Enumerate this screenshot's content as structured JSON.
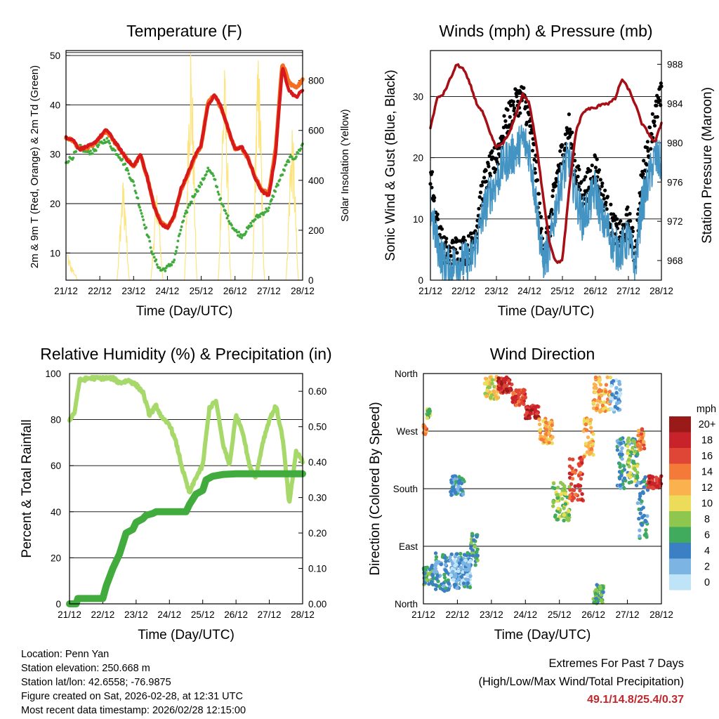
{
  "chart_data": [
    {
      "type": "line",
      "title": "Temperature (F)",
      "xlabel": "Time (Day/UTC)",
      "ylabel": "2m & 9m T (Red, Orange) & 2m Td (Green)",
      "ylabel_right": "Solar Insolation (Yellow)",
      "xlim": [
        0,
        7
      ],
      "x_tick_labels": [
        "21/12",
        "22/12",
        "23/12",
        "24/12",
        "25/12",
        "26/12",
        "27/12",
        "28/12"
      ],
      "ylim": [
        4.5,
        51
      ],
      "y_ticks": [
        10,
        20,
        30,
        40,
        50
      ],
      "y2lim": [
        0,
        920
      ],
      "y2_ticks": [
        0,
        200,
        400,
        600,
        800
      ],
      "series": [
        {
          "name": "2m T",
          "color": "#d7191c",
          "x": [
            0,
            0.2,
            0.4,
            0.6,
            0.8,
            1.0,
            1.2,
            1.4,
            1.6,
            1.8,
            2.0,
            2.2,
            2.4,
            2.6,
            2.8,
            3.0,
            3.2,
            3.4,
            3.6,
            3.8,
            4.0,
            4.2,
            4.4,
            4.6,
            4.8,
            5.0,
            5.2,
            5.4,
            5.6,
            5.8,
            6.0,
            6.2,
            6.4,
            6.6,
            6.8,
            7.0
          ],
          "y": [
            33.5,
            33,
            31,
            31.5,
            32,
            33.5,
            35,
            33,
            31,
            29,
            27.5,
            30,
            25.5,
            19.5,
            16,
            15,
            17.5,
            23,
            26,
            29.5,
            32,
            40,
            42,
            39.5,
            35,
            31,
            31.5,
            29,
            25,
            22.5,
            21.5,
            30,
            47.5,
            43,
            41.5,
            43
          ]
        },
        {
          "name": "9m T",
          "color": "#f46d20",
          "x": [
            0,
            0.2,
            0.4,
            0.6,
            0.8,
            1.0,
            1.2,
            1.4,
            1.6,
            1.8,
            2.0,
            2.2,
            2.4,
            2.6,
            2.8,
            3.0,
            3.2,
            3.4,
            3.6,
            3.8,
            4.0,
            4.2,
            4.4,
            4.6,
            4.8,
            5.0,
            5.2,
            5.4,
            5.6,
            5.8,
            6.0,
            6.2,
            6.4,
            6.6,
            6.8,
            7.0
          ],
          "y": [
            33.3,
            32.8,
            31,
            31.3,
            31.8,
            33.3,
            34.7,
            32.8,
            31,
            29,
            27.5,
            29.8,
            25.5,
            19.6,
            16.2,
            15.2,
            17.5,
            22.8,
            25.8,
            29.2,
            31.8,
            40.5,
            42,
            39.2,
            35,
            31.2,
            31.3,
            29,
            25.2,
            22.8,
            22,
            31,
            48.5,
            44.5,
            43.5,
            45
          ]
        },
        {
          "name": "2m Td",
          "color": "#41ab3d",
          "x": [
            0,
            0.2,
            0.4,
            0.6,
            0.8,
            1.0,
            1.2,
            1.4,
            1.6,
            1.8,
            2.0,
            2.2,
            2.4,
            2.6,
            2.8,
            3.0,
            3.2,
            3.4,
            3.6,
            3.8,
            4.0,
            4.2,
            4.4,
            4.6,
            4.8,
            5.0,
            5.2,
            5.4,
            5.6,
            5.8,
            6.0,
            6.2,
            6.4,
            6.6,
            6.8,
            7.0
          ],
          "y": [
            28.5,
            29.5,
            31.5,
            30.5,
            30.5,
            32,
            33,
            31,
            29.5,
            27,
            24,
            19,
            14,
            9,
            6.5,
            7,
            8.5,
            15,
            19,
            22,
            24,
            27,
            25,
            20,
            17,
            14.5,
            13.5,
            15,
            17,
            18,
            19,
            23,
            26,
            29,
            29.5,
            32
          ]
        }
      ],
      "insolation": {
        "name": "Solar Insolation",
        "color": "#fde47f",
        "days": [
          0,
          1,
          2,
          3,
          4,
          5,
          6
        ],
        "peaks": [
          110,
          390,
          340,
          910,
          840,
          880,
          600
        ]
      }
    },
    {
      "type": "line",
      "title": "Winds (mph) & Pressure (mb)",
      "xlabel": "Time (Day/UTC)",
      "ylabel": "Sonic Wind & Gust (Blue, Black)",
      "ylabel_right": "Station Pressure (Maroon)",
      "xlim": [
        0,
        7
      ],
      "x_tick_labels": [
        "21/12",
        "22/12",
        "23/12",
        "24/12",
        "25/12",
        "26/12",
        "27/12",
        "28/12"
      ],
      "ylim": [
        0,
        37.5
      ],
      "y_ticks": [
        0,
        10,
        20,
        30
      ],
      "y2lim": [
        966,
        989.4
      ],
      "y2_ticks": [
        968,
        972,
        976,
        980,
        984,
        988
      ],
      "series": [
        {
          "name": "Sonic Wind",
          "color": "#4393c3",
          "x": [
            0,
            0.2,
            0.4,
            0.6,
            0.8,
            1.0,
            1.2,
            1.4,
            1.6,
            1.8,
            2.0,
            2.2,
            2.4,
            2.6,
            2.8,
            3.0,
            3.2,
            3.4,
            3.6,
            3.8,
            4.0,
            4.2,
            4.4,
            4.6,
            4.8,
            5.0,
            5.2,
            5.4,
            5.6,
            5.8,
            6.0,
            6.2,
            6.4,
            6.6,
            6.8,
            7.0
          ],
          "y": [
            12,
            6,
            3,
            2,
            3,
            3,
            3,
            6,
            11,
            14,
            16,
            19,
            20,
            21,
            23,
            21,
            13,
            3,
            5,
            12,
            17,
            20,
            14,
            10,
            12,
            15,
            10,
            8,
            5,
            5,
            7,
            2,
            12,
            16,
            20,
            19
          ]
        },
        {
          "name": "Gust",
          "color": "#000000",
          "x": [
            0,
            0.2,
            0.4,
            0.6,
            0.8,
            1.0,
            1.2,
            1.4,
            1.6,
            1.8,
            2.0,
            2.2,
            2.4,
            2.6,
            2.8,
            3.0,
            3.2,
            3.4,
            3.6,
            3.8,
            4.0,
            4.2,
            4.4,
            4.6,
            4.8,
            5.0,
            5.2,
            5.4,
            5.6,
            5.8,
            6.0,
            6.2,
            6.4,
            6.6,
            6.8,
            7.0
          ],
          "y": [
            18,
            9,
            5,
            4,
            5,
            5,
            5,
            9,
            15,
            18,
            20,
            24,
            27,
            29,
            30,
            26,
            18,
            5,
            8,
            16,
            21,
            25,
            18,
            14,
            16,
            19,
            14,
            11,
            8,
            7,
            10,
            4,
            16,
            22,
            27,
            30
          ]
        },
        {
          "name": "Station Pressure",
          "color": "#a50f15",
          "x": [
            0,
            0.2,
            0.4,
            0.6,
            0.8,
            1.0,
            1.2,
            1.4,
            1.6,
            1.8,
            2.0,
            2.2,
            2.4,
            2.6,
            2.8,
            3.0,
            3.2,
            3.4,
            3.6,
            3.8,
            4.0,
            4.2,
            4.4,
            4.6,
            4.8,
            5.0,
            5.2,
            5.4,
            5.6,
            5.8,
            6.0,
            6.2,
            6.4,
            6.6,
            6.8,
            7.0
          ],
          "y": [
            981.5,
            984.5,
            985,
            986.5,
            988,
            987.5,
            986,
            984,
            983,
            981,
            979.5,
            980,
            981,
            983,
            985,
            984,
            980,
            975,
            970,
            967.8,
            968,
            975,
            981,
            983,
            983.5,
            983.5,
            984,
            984,
            984.5,
            986.5,
            985.5,
            984,
            982,
            981,
            980,
            982
          ]
        }
      ]
    },
    {
      "type": "line",
      "title": "Relative Humidity (%) & Precipitation (in)",
      "xlabel": "Time (Day/UTC)",
      "ylabel": "Percent & Total Rainfall",
      "xlim": [
        0,
        7
      ],
      "x_tick_labels": [
        "21/12",
        "22/12",
        "23/12",
        "24/12",
        "25/12",
        "26/12",
        "27/12",
        "28/12"
      ],
      "ylim": [
        0,
        100
      ],
      "y_ticks": [
        0,
        20,
        40,
        60,
        80,
        100
      ],
      "y2lim": [
        0,
        0.65
      ],
      "y2_ticks": [
        "0.00",
        "0.10",
        "0.20",
        "0.30",
        "0.40",
        "0.50",
        "0.60"
      ],
      "series": [
        {
          "name": "Relative Humidity",
          "color": "#a6d96a",
          "x": [
            0,
            0.15,
            0.3,
            0.6,
            1.0,
            1.3,
            1.5,
            1.8,
            2.0,
            2.2,
            2.4,
            2.6,
            2.8,
            3.0,
            3.2,
            3.4,
            3.6,
            3.8,
            4.0,
            4.2,
            4.4,
            4.6,
            4.8,
            5.0,
            5.2,
            5.4,
            5.6,
            5.8,
            6.0,
            6.2,
            6.4,
            6.6,
            6.8,
            7.0
          ],
          "y": [
            80,
            83,
            97,
            98,
            98,
            98,
            96,
            97,
            95,
            92,
            82,
            86,
            80,
            78,
            70,
            58,
            48,
            55,
            60,
            85,
            88,
            70,
            60,
            82,
            75,
            60,
            55,
            70,
            80,
            86,
            72,
            43,
            66,
            62
          ]
        },
        {
          "name": "Total Rainfall",
          "color": "#41ab3d",
          "axis": "right",
          "x": [
            0,
            0.2,
            0.25,
            1.0,
            1.1,
            1.3,
            1.5,
            1.7,
            1.9,
            2.0,
            2.2,
            2.3,
            2.5,
            2.6,
            3.0,
            3.5,
            3.6,
            3.8,
            4.0,
            4.1,
            4.3,
            4.6,
            5.0,
            7.0
          ],
          "y": [
            0,
            0,
            0.015,
            0.015,
            0.05,
            0.1,
            0.14,
            0.2,
            0.21,
            0.23,
            0.24,
            0.25,
            0.255,
            0.26,
            0.26,
            0.26,
            0.28,
            0.31,
            0.32,
            0.35,
            0.36,
            0.365,
            0.367,
            0.367
          ]
        }
      ]
    },
    {
      "type": "scatter",
      "title": "Wind Direction",
      "xlabel": "Time (Day/UTC)",
      "ylabel": "Direction (Colored By Speed)",
      "xlim": [
        0,
        7
      ],
      "x_tick_labels": [
        "21/12",
        "22/12",
        "23/12",
        "24/12",
        "25/12",
        "26/12",
        "27/12",
        "28/12"
      ],
      "y_tick_labels": [
        "North",
        "East",
        "South",
        "West",
        "North"
      ],
      "ylim": [
        0,
        360
      ],
      "colorbar": {
        "title": "mph",
        "labels": [
          "20+",
          "18",
          "16",
          "14",
          "12",
          "10",
          "8",
          "6",
          "4",
          "2",
          "0"
        ],
        "colors": [
          "#9a1a1a",
          "#c8222a",
          "#e04636",
          "#f47a3a",
          "#fbb24e",
          "#eddc5a",
          "#8fc74e",
          "#41ab5d",
          "#3b7fc4",
          "#7cb4e3",
          "#bfe3f7"
        ]
      },
      "clusters": [
        {
          "x": [
            0,
            0.1
          ],
          "dir": [
            265,
            280
          ],
          "speed": 14
        },
        {
          "x": [
            0.1,
            0.2
          ],
          "dir": [
            290,
            305
          ],
          "speed": 8
        },
        {
          "x": [
            0,
            0.3
          ],
          "dir": [
            30,
            60
          ],
          "speed": 6
        },
        {
          "x": [
            0.3,
            1.4
          ],
          "dir": [
            20,
            80
          ],
          "speed": 4
        },
        {
          "x": [
            0.8,
            1.4
          ],
          "dir": [
            30,
            70
          ],
          "speed": 2
        },
        {
          "x": [
            0.8,
            1.2
          ],
          "dir": [
            170,
            200
          ],
          "speed": 4
        },
        {
          "x": [
            1.4,
            1.6
          ],
          "dir": [
            60,
            110
          ],
          "speed": 6
        },
        {
          "x": [
            1.8,
            2.2
          ],
          "dir": [
            320,
            355
          ],
          "speed": 10
        },
        {
          "x": [
            2.2,
            2.6
          ],
          "dir": [
            330,
            355
          ],
          "speed": 18
        },
        {
          "x": [
            2.6,
            3.0
          ],
          "dir": [
            310,
            335
          ],
          "speed": 16
        },
        {
          "x": [
            3.0,
            3.4
          ],
          "dir": [
            290,
            310
          ],
          "speed": 18
        },
        {
          "x": [
            3.4,
            3.8
          ],
          "dir": [
            250,
            290
          ],
          "speed": 12
        },
        {
          "x": [
            3.8,
            4.3
          ],
          "dir": [
            130,
            190
          ],
          "speed": 8
        },
        {
          "x": [
            4.3,
            4.7
          ],
          "dir": [
            160,
            230
          ],
          "speed": 16
        },
        {
          "x": [
            4.7,
            5.0
          ],
          "dir": [
            230,
            290
          ],
          "speed": 12
        },
        {
          "x": [
            5.0,
            5.5
          ],
          "dir": [
            300,
            355
          ],
          "speed": 12
        },
        {
          "x": [
            5.5,
            5.8
          ],
          "dir": [
            300,
            350
          ],
          "speed": 2
        },
        {
          "x": [
            5.0,
            5.3
          ],
          "dir": [
            0,
            30
          ],
          "speed": 6
        },
        {
          "x": [
            5.7,
            6.3
          ],
          "dir": [
            180,
            260
          ],
          "speed": 4
        },
        {
          "x": [
            6.0,
            6.3
          ],
          "dir": [
            190,
            260
          ],
          "speed": 8
        },
        {
          "x": [
            6.3,
            6.6
          ],
          "dir": [
            100,
            200
          ],
          "speed": 4
        },
        {
          "x": [
            6.6,
            7.0
          ],
          "dir": [
            180,
            200
          ],
          "speed": 18
        },
        {
          "x": [
            6.3,
            6.5
          ],
          "dir": [
            240,
            275
          ],
          "speed": 14
        }
      ]
    }
  ],
  "footer": {
    "location": "Location: Penn Yan",
    "elevation": "Station elevation: 250.668 m",
    "latlon": "Station lat/lon: 42.6558; -76.9875",
    "created": "Figure created on Sat, 2026-02-28, at 12:31 UTC",
    "recent": "Most recent data timestamp: 2026/02/28 12:15:00",
    "extremes_title": "Extremes For Past 7 Days",
    "extremes_subtitle": "(High/Low/Max Wind/Total Precipitation)",
    "extremes_values": "49.1/14.8/25.4/0.37"
  }
}
